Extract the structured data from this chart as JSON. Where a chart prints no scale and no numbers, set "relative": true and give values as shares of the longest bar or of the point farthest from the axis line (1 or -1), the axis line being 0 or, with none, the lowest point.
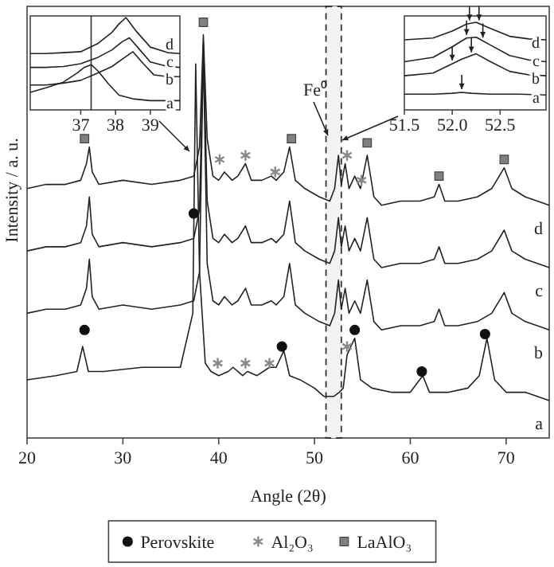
{
  "chart_data": [
    {
      "type": "line",
      "relative": true,
      "xlabel": "Angle (2θ)",
      "ylabel": "Intensity / a. u.",
      "xlim": [
        20,
        74.5
      ],
      "xticks": [
        20,
        30,
        40,
        50,
        60,
        70
      ],
      "legend": "bottom",
      "marker": "none",
      "line_style": "solid",
      "series": [
        {
          "name": "a",
          "color": "#222222",
          "x": [
            20,
            23,
            25.2,
            25.8,
            26.4,
            28,
            32,
            36,
            37.3,
            37.6,
            38.0,
            38.6,
            39.2,
            40,
            41,
            41.5,
            42.5,
            43,
            44,
            45.3,
            46,
            46.8,
            47.4,
            48.5,
            50,
            51,
            52,
            52.6,
            53,
            53.4,
            54.2,
            54.8,
            56,
            58,
            60,
            61.3,
            62,
            64,
            66,
            67.2,
            68,
            68.8,
            70,
            72,
            74.5
          ],
          "values": [
            0.14,
            0.15,
            0.16,
            0.22,
            0.16,
            0.16,
            0.17,
            0.17,
            0.3,
            0.9,
            0.4,
            0.18,
            0.16,
            0.15,
            0.16,
            0.17,
            0.15,
            0.16,
            0.15,
            0.17,
            0.17,
            0.21,
            0.15,
            0.14,
            0.12,
            0.1,
            0.1,
            0.11,
            0.12,
            0.2,
            0.24,
            0.14,
            0.12,
            0.11,
            0.11,
            0.15,
            0.11,
            0.11,
            0.12,
            0.15,
            0.24,
            0.14,
            0.11,
            0.11,
            0.09
          ]
        },
        {
          "name": "b",
          "color": "#222222",
          "x": [
            20,
            22,
            24,
            25.6,
            26.2,
            26.5,
            26.8,
            27.5,
            30,
            33,
            36,
            37.4,
            38.0,
            38.4,
            38.8,
            39.4,
            40,
            40.6,
            41.4,
            42,
            42.8,
            43.4,
            44.5,
            45.5,
            46,
            46.8,
            47.4,
            48,
            49,
            50.5,
            51.6,
            52.1,
            52.5,
            52.8,
            53.2,
            53.6,
            54.2,
            54.8,
            55.5,
            56.2,
            57,
            59,
            61,
            62.5,
            63,
            63.6,
            65,
            67,
            68.5,
            69.8,
            70.6,
            72,
            74.5
          ],
          "values": [
            0.3,
            0.31,
            0.31,
            0.32,
            0.36,
            0.43,
            0.34,
            0.31,
            0.32,
            0.31,
            0.32,
            0.33,
            0.4,
            0.93,
            0.42,
            0.33,
            0.32,
            0.34,
            0.32,
            0.33,
            0.36,
            0.32,
            0.32,
            0.33,
            0.32,
            0.34,
            0.42,
            0.32,
            0.3,
            0.28,
            0.27,
            0.3,
            0.38,
            0.31,
            0.36,
            0.3,
            0.33,
            0.3,
            0.38,
            0.28,
            0.26,
            0.27,
            0.27,
            0.28,
            0.31,
            0.27,
            0.27,
            0.28,
            0.3,
            0.35,
            0.3,
            0.28,
            0.26
          ]
        },
        {
          "name": "c",
          "color": "#222222",
          "x": [
            20,
            22,
            24,
            25.6,
            26.2,
            26.5,
            26.8,
            27.5,
            30,
            33,
            36,
            37.4,
            38.0,
            38.4,
            38.8,
            39.4,
            40,
            40.6,
            41.4,
            42,
            42.8,
            43.4,
            44.5,
            45.5,
            46,
            46.8,
            47.4,
            48,
            49,
            50.5,
            51.6,
            52.1,
            52.5,
            52.8,
            53.2,
            53.6,
            54.2,
            54.8,
            55.5,
            56.2,
            57,
            59,
            61,
            62.5,
            63,
            63.6,
            65,
            67,
            68.5,
            69.8,
            70.6,
            72,
            74.5
          ],
          "values": [
            0.45,
            0.46,
            0.46,
            0.47,
            0.51,
            0.58,
            0.49,
            0.46,
            0.47,
            0.46,
            0.47,
            0.48,
            0.55,
            0.95,
            0.57,
            0.48,
            0.47,
            0.49,
            0.47,
            0.48,
            0.51,
            0.47,
            0.47,
            0.48,
            0.47,
            0.49,
            0.57,
            0.47,
            0.45,
            0.43,
            0.42,
            0.45,
            0.53,
            0.46,
            0.51,
            0.45,
            0.48,
            0.45,
            0.53,
            0.43,
            0.41,
            0.42,
            0.42,
            0.43,
            0.46,
            0.42,
            0.42,
            0.43,
            0.45,
            0.5,
            0.45,
            0.43,
            0.41
          ]
        },
        {
          "name": "d",
          "color": "#222222",
          "x": [
            20,
            22,
            24,
            25.6,
            26.2,
            26.5,
            26.8,
            27.5,
            30,
            33,
            36,
            37.4,
            38.0,
            38.4,
            38.8,
            39.4,
            40,
            40.6,
            41.4,
            42,
            42.8,
            43.4,
            44.5,
            45.5,
            46,
            46.8,
            47.4,
            48,
            49,
            50.5,
            51.6,
            52.1,
            52.5,
            52.8,
            53.2,
            53.6,
            54.2,
            54.8,
            55.5,
            56.2,
            57,
            59,
            61,
            62.5,
            63,
            63.6,
            65,
            67,
            68.5,
            69.8,
            70.6,
            72,
            74.5
          ],
          "values": [
            0.6,
            0.61,
            0.61,
            0.62,
            0.66,
            0.7,
            0.64,
            0.61,
            0.62,
            0.61,
            0.62,
            0.63,
            0.7,
            0.97,
            0.72,
            0.63,
            0.62,
            0.64,
            0.62,
            0.63,
            0.66,
            0.62,
            0.62,
            0.63,
            0.62,
            0.64,
            0.7,
            0.62,
            0.6,
            0.58,
            0.57,
            0.6,
            0.68,
            0.61,
            0.66,
            0.6,
            0.63,
            0.6,
            0.68,
            0.58,
            0.56,
            0.57,
            0.57,
            0.58,
            0.61,
            0.57,
            0.57,
            0.58,
            0.6,
            0.65,
            0.6,
            0.58,
            0.56
          ]
        },
        {
          "name": "Perovskite",
          "type": "scatter",
          "marker": "circle",
          "color": "#111111",
          "x": [
            37.4,
            26.0,
            46.6,
            54.2,
            61.2,
            67.8
          ],
          "values": [
            0.54,
            0.26,
            0.22,
            0.26,
            0.16,
            0.25
          ]
        },
        {
          "name": "Al₂O₃",
          "type": "scatter",
          "marker": "cross",
          "color": "#888888",
          "x": [
            40.1,
            42.8,
            45.9,
            53.4,
            54.9,
            39.9,
            42.8,
            45.3,
            53.4
          ],
          "values": [
            0.67,
            0.68,
            0.64,
            0.68,
            0.62,
            0.18,
            0.18,
            0.18,
            0.22
          ]
        },
        {
          "name": "LaAlO₃",
          "type": "scatter",
          "marker": "square",
          "color": "#808080",
          "x": [
            26,
            38.4,
            47.6,
            55.5,
            63,
            69.8
          ],
          "values": [
            0.72,
            1.0,
            0.72,
            0.71,
            0.63,
            0.67
          ]
        }
      ],
      "bands": [
        {
          "axis": "x",
          "from": 51.2,
          "to": 52.8,
          "color": "#f3f3f3"
        }
      ],
      "annotations": [
        "Fe⁰"
      ]
    },
    {
      "type": "line",
      "relative": true,
      "xlim": [
        35.55,
        39.85
      ],
      "xticks": [
        37,
        38,
        39
      ],
      "marker": "none",
      "line_style": "solid",
      "ref_lines": [
        {
          "axis": "x",
          "value": 37.3
        }
      ],
      "series": [
        {
          "name": "a",
          "color": "#222222",
          "x": [
            35.55,
            36,
            36.5,
            36.9,
            37.1,
            37.3,
            37.5,
            37.8,
            38.1,
            38.5,
            39,
            39.5,
            39.85
          ],
          "values": [
            0.19,
            0.24,
            0.3,
            0.4,
            0.46,
            0.49,
            0.42,
            0.28,
            0.16,
            0.12,
            0.1,
            0.1,
            0.1
          ]
        },
        {
          "name": "b",
          "color": "#222222",
          "x": [
            35.55,
            36,
            36.5,
            37,
            37.5,
            37.9,
            38.2,
            38.5,
            38.8,
            39.1,
            39.5,
            39.85
          ],
          "values": [
            0.27,
            0.27,
            0.29,
            0.32,
            0.4,
            0.47,
            0.55,
            0.63,
            0.5,
            0.38,
            0.36,
            0.36
          ]
        },
        {
          "name": "c",
          "color": "#222222",
          "x": [
            35.55,
            36,
            36.5,
            37,
            37.5,
            37.9,
            38.2,
            38.4,
            38.7,
            39,
            39.5,
            39.85
          ],
          "values": [
            0.46,
            0.46,
            0.47,
            0.5,
            0.57,
            0.65,
            0.74,
            0.78,
            0.65,
            0.52,
            0.47,
            0.46
          ]
        },
        {
          "name": "d",
          "color": "#222222",
          "x": [
            35.55,
            36,
            36.5,
            37,
            37.5,
            37.9,
            38.1,
            38.3,
            38.6,
            39,
            39.5,
            39.85
          ],
          "values": [
            0.61,
            0.61,
            0.62,
            0.63,
            0.72,
            0.84,
            0.93,
            1.0,
            0.85,
            0.68,
            0.62,
            0.61
          ]
        }
      ]
    },
    {
      "type": "line",
      "relative": true,
      "xlim": [
        51.5,
        52.98
      ],
      "xticks": [
        {
          "value": 51.5,
          "label": "51.5"
        },
        {
          "value": 52.0,
          "label": "52.0"
        },
        {
          "value": 52.5,
          "label": "52.5"
        }
      ],
      "marker": "none",
      "line_style": "solid",
      "series": [
        {
          "name": "a",
          "color": "#222222",
          "x": [
            51.5,
            51.8,
            52.0,
            52.1,
            52.2,
            52.4,
            52.7,
            52.98
          ],
          "values": [
            0.18,
            0.18,
            0.19,
            0.2,
            0.19,
            0.18,
            0.18,
            0.17
          ]
        },
        {
          "name": "b",
          "color": "#222222",
          "x": [
            51.5,
            51.8,
            51.95,
            52.1,
            52.25,
            52.4,
            52.6,
            52.8,
            52.98
          ],
          "values": [
            0.39,
            0.42,
            0.5,
            0.58,
            0.64,
            0.55,
            0.44,
            0.4,
            0.39
          ]
        },
        {
          "name": "c",
          "color": "#222222",
          "x": [
            51.5,
            51.8,
            52.0,
            52.15,
            52.25,
            52.4,
            52.6,
            52.8,
            52.98
          ],
          "values": [
            0.55,
            0.6,
            0.72,
            0.82,
            0.83,
            0.74,
            0.62,
            0.57,
            0.55
          ]
        },
        {
          "name": "d",
          "color": "#222222",
          "x": [
            51.5,
            51.8,
            52.0,
            52.15,
            52.25,
            52.4,
            52.6,
            52.8,
            52.98
          ],
          "values": [
            0.8,
            0.82,
            0.9,
            0.98,
            1.0,
            0.93,
            0.84,
            0.81,
            0.8
          ]
        }
      ]
    }
  ]
}
